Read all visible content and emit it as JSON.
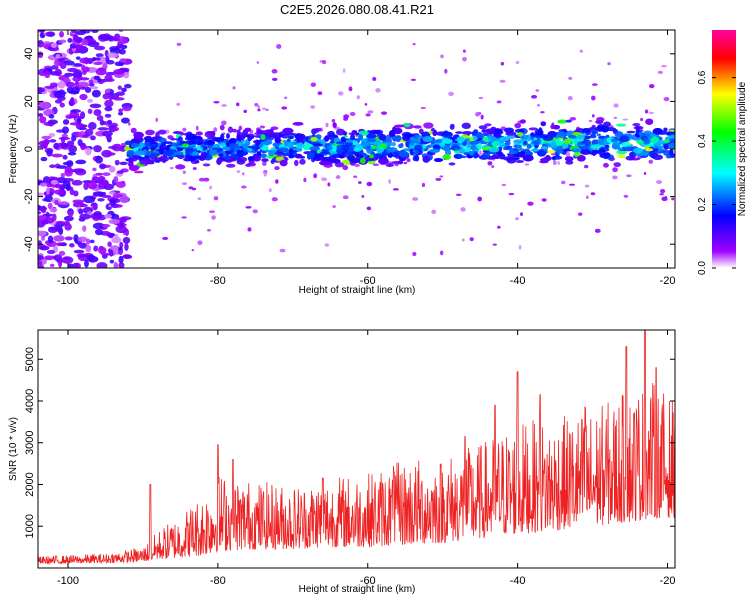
{
  "chart_data": [
    {
      "type": "heatmap",
      "title": "C2E5.2026.080.08.41.R21",
      "xlabel": "Height of straight line (km)",
      "ylabel": "Frequency (Hz)",
      "xlim": [
        -104,
        -19
      ],
      "ylim": [
        -50,
        50
      ],
      "x_ticks": [
        -100,
        -80,
        -60,
        -40,
        -20
      ],
      "y_ticks": [
        -40,
        -20,
        0,
        20,
        40
      ],
      "colorbar": {
        "label": "Normalized spectral amplitude",
        "range": [
          0,
          0.75
        ],
        "ticks": [
          0.0,
          0.2,
          0.4,
          0.6
        ],
        "tick_labels": [
          "0.0",
          "0.2",
          "0.4",
          "0.6"
        ],
        "colors": [
          "#ffffff",
          "#a000ff",
          "#0000ff",
          "#00ffff",
          "#00ff00",
          "#ffff00",
          "#ff0000",
          "#ff00a0"
        ]
      },
      "band": {
        "x_start": -92,
        "x_end": -19,
        "center_hz": 0,
        "center_hz_end": 3,
        "half_width_hz": 8
      },
      "noise_region": {
        "x_start": -104,
        "x_end": -92
      },
      "grid": false
    },
    {
      "type": "line",
      "xlabel": "Height of straight line (km)",
      "ylabel": "SNR (10 * v/v)",
      "xlim": [
        -104,
        -19
      ],
      "ylim": [
        0,
        5700
      ],
      "x_ticks": [
        -100,
        -80,
        -60,
        -40,
        -20
      ],
      "y_ticks": [
        1000,
        2000,
        3000,
        4000,
        5000
      ],
      "color": "#ee2222",
      "grid": false,
      "envelope": {
        "x": [
          -104,
          -95,
          -90,
          -88,
          -85,
          -82,
          -80,
          -75,
          -70,
          -65,
          -60,
          -55,
          -50,
          -45,
          -42,
          -40,
          -35,
          -30,
          -25,
          -22,
          -19
        ],
        "y_low": [
          100,
          120,
          150,
          200,
          250,
          300,
          400,
          450,
          450,
          500,
          500,
          550,
          600,
          700,
          800,
          800,
          900,
          1000,
          1100,
          1200,
          1200
        ],
        "y_high": [
          280,
          350,
          500,
          900,
          1300,
          1800,
          2300,
          2100,
          2000,
          2200,
          2300,
          2600,
          2700,
          3000,
          3300,
          3500,
          3600,
          3800,
          4300,
          4500,
          4000
        ]
      },
      "peaks": [
        {
          "x": -89,
          "y": 2000
        },
        {
          "x": -80,
          "y": 2950
        },
        {
          "x": -78,
          "y": 2600
        },
        {
          "x": -66,
          "y": 2150
        },
        {
          "x": -56.5,
          "y": 2300
        },
        {
          "x": -47,
          "y": 3150
        },
        {
          "x": -43,
          "y": 3900
        },
        {
          "x": -40,
          "y": 4700
        },
        {
          "x": -37,
          "y": 4150
        },
        {
          "x": -31,
          "y": 3850
        },
        {
          "x": -25.5,
          "y": 5300
        },
        {
          "x": -23,
          "y": 5700
        },
        {
          "x": -21.5,
          "y": 4800
        }
      ]
    }
  ]
}
